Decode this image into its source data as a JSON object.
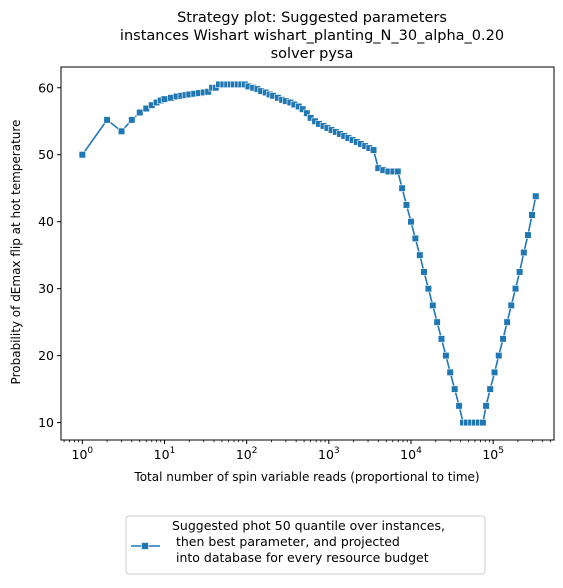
{
  "chart_data": {
    "type": "line",
    "title_lines": [
      "Strategy plot: Suggested parameters",
      "instances Wishart wishart_planting_N_30_alpha_0.20",
      "solver pysa"
    ],
    "xlabel": "Total number of spin variable reads (proportional to time)",
    "ylabel": "Probability of dEmax flip at hot temperature",
    "xscale": "log",
    "xlim": [
      0.55,
      550000
    ],
    "ylim": [
      7.4,
      63.1
    ],
    "x_ticks": [
      {
        "base": "10",
        "exp": "0",
        "value": 1
      },
      {
        "base": "10",
        "exp": "1",
        "value": 10
      },
      {
        "base": "10",
        "exp": "2",
        "value": 100
      },
      {
        "base": "10",
        "exp": "3",
        "value": 1000
      },
      {
        "base": "10",
        "exp": "4",
        "value": 10000
      },
      {
        "base": "10",
        "exp": "5",
        "value": 100000
      }
    ],
    "y_ticks": [
      "10",
      "20",
      "30",
      "40",
      "50",
      "60"
    ],
    "grid": false,
    "legend_position": "below-center",
    "series": [
      {
        "name": "Suggested phot 50 quantile over instances,\n then best parameter, and projected\n into database for every resource budget",
        "color": "#1f77b4",
        "marker": "square",
        "points": [
          [
            1,
            50.0
          ],
          [
            2,
            55.2
          ],
          [
            3,
            53.5
          ],
          [
            4,
            55.2
          ],
          [
            5,
            56.3
          ],
          [
            6,
            56.9
          ],
          [
            7,
            57.4
          ],
          [
            8,
            57.8
          ],
          [
            9,
            58.1
          ],
          [
            10,
            58.3
          ],
          [
            12,
            58.5
          ],
          [
            14,
            58.7
          ],
          [
            16,
            58.8
          ],
          [
            18,
            58.9
          ],
          [
            20,
            59.0
          ],
          [
            23,
            59.1
          ],
          [
            26,
            59.2
          ],
          [
            30,
            59.3
          ],
          [
            34,
            59.4
          ],
          [
            38,
            60.0
          ],
          [
            42,
            60.0
          ],
          [
            46,
            60.5
          ],
          [
            52,
            60.5
          ],
          [
            58,
            60.5
          ],
          [
            64,
            60.5
          ],
          [
            70,
            60.5
          ],
          [
            78,
            60.5
          ],
          [
            86,
            60.5
          ],
          [
            95,
            60.5
          ],
          [
            105,
            60.2
          ],
          [
            120,
            60.0
          ],
          [
            135,
            59.8
          ],
          [
            150,
            59.5
          ],
          [
            170,
            59.3
          ],
          [
            190,
            59.0
          ],
          [
            210,
            58.8
          ],
          [
            240,
            58.5
          ],
          [
            270,
            58.2
          ],
          [
            300,
            58.0
          ],
          [
            340,
            57.8
          ],
          [
            380,
            57.5
          ],
          [
            430,
            57.2
          ],
          [
            480,
            56.8
          ],
          [
            540,
            56.2
          ],
          [
            600,
            55.5
          ],
          [
            680,
            55.0
          ],
          [
            760,
            54.6
          ],
          [
            860,
            54.3
          ],
          [
            960,
            54.0
          ],
          [
            1080,
            53.7
          ],
          [
            1220,
            53.4
          ],
          [
            1370,
            53.1
          ],
          [
            1540,
            52.8
          ],
          [
            1730,
            52.5
          ],
          [
            1950,
            52.2
          ],
          [
            2190,
            51.9
          ],
          [
            2460,
            51.6
          ],
          [
            2770,
            51.3
          ],
          [
            3110,
            51.0
          ],
          [
            3500,
            50.7
          ],
          [
            4000,
            48.0
          ],
          [
            4600,
            47.7
          ],
          [
            5300,
            47.5
          ],
          [
            6100,
            47.5
          ],
          [
            6900,
            47.5
          ],
          [
            7800,
            45.0
          ],
          [
            8800,
            42.5
          ],
          [
            10000,
            40.0
          ],
          [
            11300,
            37.5
          ],
          [
            12800,
            35.0
          ],
          [
            14400,
            32.5
          ],
          [
            16300,
            30.0
          ],
          [
            18400,
            27.5
          ],
          [
            20800,
            25.0
          ],
          [
            23500,
            22.5
          ],
          [
            26600,
            20.0
          ],
          [
            30000,
            17.5
          ],
          [
            34000,
            15.0
          ],
          [
            38500,
            12.5
          ],
          [
            43000,
            10.0
          ],
          [
            48000,
            10.0
          ],
          [
            54000,
            10.0
          ],
          [
            60000,
            10.0
          ],
          [
            67000,
            10.0
          ],
          [
            75000,
            10.0
          ],
          [
            82000,
            12.5
          ],
          [
            92000,
            15.0
          ],
          [
            104000,
            17.5
          ],
          [
            117000,
            20.0
          ],
          [
            132000,
            22.5
          ],
          [
            148000,
            25.0
          ],
          [
            166000,
            27.5
          ],
          [
            187000,
            30.0
          ],
          [
            210000,
            32.5
          ],
          [
            236000,
            35.4
          ],
          [
            265000,
            38.0
          ],
          [
            297000,
            41.0
          ],
          [
            330000,
            43.8
          ]
        ]
      }
    ]
  }
}
